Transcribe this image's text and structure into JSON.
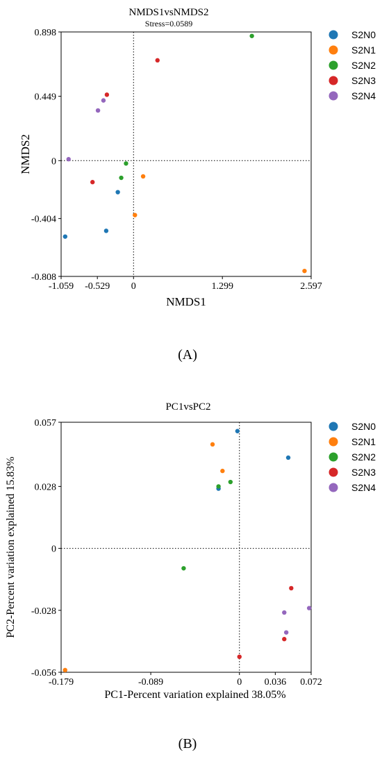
{
  "figure": {
    "label_a": "(A)",
    "label_b": "(B)"
  },
  "chart_data": [
    {
      "type": "scatter",
      "title": "NMDS1vsNMDS2",
      "subtitle": "Stress=0.0589",
      "xlabel": "NMDS1",
      "ylabel": "NMDS2",
      "xlim": [
        -1.059,
        2.597
      ],
      "ylim": [
        -0.808,
        0.898
      ],
      "xticks": [
        -1.059,
        -0.529,
        0,
        1.299,
        2.597
      ],
      "yticks": [
        -0.808,
        -0.404,
        0,
        0.449,
        0.898
      ],
      "reference_lines": {
        "x": 0,
        "y": 0
      },
      "legend_position": "outside-right",
      "series": [
        {
          "name": "S2N0",
          "color": "#1f77b4",
          "points": [
            [
              -1.0,
              -0.53
            ],
            [
              -0.4,
              -0.49
            ],
            [
              -0.23,
              -0.22
            ]
          ]
        },
        {
          "name": "S2N1",
          "color": "#ff7f0e",
          "points": [
            [
              0.02,
              -0.38
            ],
            [
              0.14,
              -0.11
            ],
            [
              2.5,
              -0.77
            ]
          ]
        },
        {
          "name": "S2N2",
          "color": "#2ca02c",
          "points": [
            [
              -0.18,
              -0.12
            ],
            [
              -0.11,
              -0.02
            ],
            [
              1.73,
              0.87
            ]
          ]
        },
        {
          "name": "S2N3",
          "color": "#d62728",
          "points": [
            [
              -0.6,
              -0.15
            ],
            [
              -0.39,
              0.46
            ],
            [
              0.35,
              0.7
            ]
          ]
        },
        {
          "name": "S2N4",
          "color": "#9467bd",
          "points": [
            [
              -0.95,
              0.01
            ],
            [
              -0.52,
              0.35
            ],
            [
              -0.44,
              0.42
            ]
          ]
        }
      ]
    },
    {
      "type": "scatter",
      "title": "PC1vsPC2",
      "xlabel": "PC1-Percent variation explained 38.05%",
      "ylabel": "PC2-Percent variation explained 15.83%",
      "xlim": [
        -0.179,
        0.072
      ],
      "ylim": [
        -0.056,
        0.057
      ],
      "xticks": [
        -0.179,
        -0.089,
        0,
        0.036,
        0.072
      ],
      "yticks": [
        -0.056,
        -0.028,
        0,
        0.028,
        0.057
      ],
      "reference_lines": {
        "x": 0,
        "y": 0
      },
      "legend_position": "outside-right",
      "series": [
        {
          "name": "S2N0",
          "color": "#1f77b4",
          "points": [
            [
              -0.002,
              0.053
            ],
            [
              0.049,
              0.041
            ],
            [
              -0.021,
              0.027
            ]
          ]
        },
        {
          "name": "S2N1",
          "color": "#ff7f0e",
          "points": [
            [
              -0.175,
              -0.055
            ],
            [
              -0.027,
              0.047
            ],
            [
              -0.017,
              0.035
            ]
          ]
        },
        {
          "name": "S2N2",
          "color": "#2ca02c",
          "points": [
            [
              -0.056,
              -0.009
            ],
            [
              -0.021,
              0.028
            ],
            [
              -0.009,
              0.03
            ]
          ]
        },
        {
          "name": "S2N3",
          "color": "#d62728",
          "points": [
            [
              0.052,
              -0.018
            ],
            [
              0.0,
              -0.049
            ],
            [
              0.045,
              -0.041
            ]
          ]
        },
        {
          "name": "S2N4",
          "color": "#9467bd",
          "points": [
            [
              0.07,
              -0.027
            ],
            [
              0.045,
              -0.029
            ],
            [
              0.047,
              -0.038
            ]
          ]
        }
      ]
    }
  ]
}
